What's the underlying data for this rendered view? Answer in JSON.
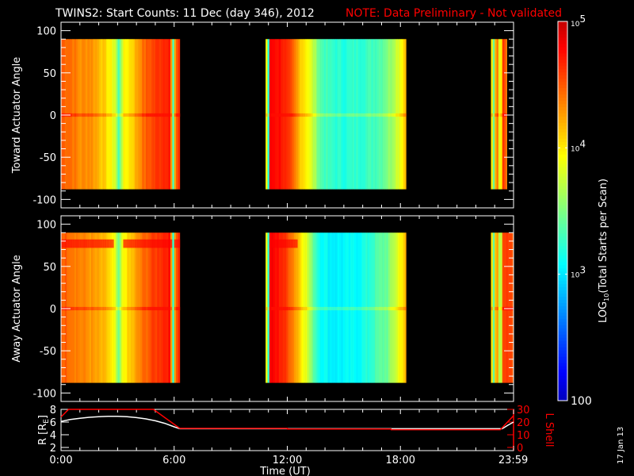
{
  "title": "TWINS2: Start Counts: 11 Dec (day 346), 2012",
  "note": "NOTE: Data Preliminary - Not validated",
  "colors": {
    "background": "#000000",
    "axes": "#ffffff",
    "note": "#ff0000",
    "r_line": "#ffffff",
    "lshell_line": "#ff0000"
  },
  "date_stamp": "17 Jan 13",
  "chart_data": [
    {
      "type": "heatmap",
      "panel": "toward",
      "ylabel": "Toward Actuator Angle",
      "ylim": [
        -110,
        110
      ],
      "yticks": [
        "100",
        "50",
        "0",
        "-50",
        "-100"
      ],
      "angle_range": [
        -88,
        90
      ],
      "segments": [
        {
          "start_h": 0.0,
          "end_h": 6.3,
          "profile": [
            [
              0,
              4.5
            ],
            [
              0.5,
              4.45
            ],
            [
              1,
              4.3
            ],
            [
              1.5,
              4.35
            ],
            [
              2,
              4.2
            ],
            [
              2.5,
              4.0
            ],
            [
              2.9,
              3.8
            ],
            [
              3.05,
              3.3
            ],
            [
              3.3,
              3.9
            ],
            [
              3.8,
              4.1
            ],
            [
              4.3,
              4.4
            ],
            [
              4.8,
              4.55
            ],
            [
              5.5,
              4.7
            ],
            [
              5.8,
              4.75
            ],
            [
              5.95,
              3.3
            ],
            [
              6.05,
              4.2
            ],
            [
              6.2,
              4.7
            ],
            [
              6.3,
              4.6
            ]
          ]
        },
        {
          "start_h": 10.85,
          "end_h": 18.3,
          "profile": [
            [
              10.85,
              4.3
            ],
            [
              11.0,
              3.2
            ],
            [
              11.1,
              4.8
            ],
            [
              11.7,
              4.75
            ],
            [
              12.2,
              4.5
            ],
            [
              12.6,
              4.2
            ],
            [
              13.0,
              4.0
            ],
            [
              13.4,
              3.7
            ],
            [
              13.8,
              3.35
            ],
            [
              14.3,
              3.25
            ],
            [
              15,
              3.2
            ],
            [
              15.8,
              3.25
            ],
            [
              16.5,
              3.3
            ],
            [
              17,
              3.4
            ],
            [
              17.5,
              3.6
            ],
            [
              18.0,
              3.9
            ],
            [
              18.3,
              4.2
            ]
          ]
        },
        {
          "start_h": 22.8,
          "end_h": 23.65,
          "profile": [
            [
              22.8,
              4.4
            ],
            [
              22.95,
              3.4
            ],
            [
              23.1,
              4.6
            ],
            [
              23.3,
              3.6
            ],
            [
              23.45,
              4.6
            ],
            [
              23.65,
              4.4
            ]
          ]
        }
      ]
    },
    {
      "type": "heatmap",
      "panel": "away",
      "ylabel": "Away Actuator Angle",
      "ylim": [
        -110,
        110
      ],
      "yticks": [
        "100",
        "50",
        "0",
        "-50",
        "-100"
      ],
      "angle_range": [
        -88,
        90
      ],
      "segments": [
        {
          "start_h": 0.0,
          "end_h": 6.3,
          "profile": [
            [
              0,
              4.5
            ],
            [
              0.5,
              4.45
            ],
            [
              1,
              4.35
            ],
            [
              1.5,
              4.3
            ],
            [
              2,
              4.2
            ],
            [
              2.5,
              4.1
            ],
            [
              2.9,
              3.8
            ],
            [
              3.05,
              3.4
            ],
            [
              3.3,
              3.95
            ],
            [
              3.8,
              4.15
            ],
            [
              4.3,
              4.4
            ],
            [
              4.8,
              4.55
            ],
            [
              5.5,
              4.7
            ],
            [
              5.8,
              4.75
            ],
            [
              5.95,
              3.3
            ],
            [
              6.05,
              4.3
            ],
            [
              6.2,
              4.7
            ],
            [
              6.3,
              4.6
            ]
          ]
        },
        {
          "start_h": 10.85,
          "end_h": 18.3,
          "profile": [
            [
              10.85,
              4.3
            ],
            [
              11.0,
              3.2
            ],
            [
              11.1,
              4.8
            ],
            [
              11.7,
              4.7
            ],
            [
              12.2,
              4.45
            ],
            [
              12.6,
              4.15
            ],
            [
              13.0,
              3.85
            ],
            [
              13.3,
              3.5
            ],
            [
              13.7,
              3.15
            ],
            [
              14.3,
              3.05
            ],
            [
              15,
              3.05
            ],
            [
              15.8,
              3.1
            ],
            [
              16.3,
              3.2
            ],
            [
              16.8,
              3.35
            ],
            [
              17.3,
              3.45
            ],
            [
              17.8,
              3.8
            ],
            [
              18.3,
              4.2
            ]
          ]
        },
        {
          "start_h": 22.8,
          "end_h": 24.0,
          "profile": [
            [
              22.8,
              4.3
            ],
            [
              22.95,
              3.4
            ],
            [
              23.1,
              4.5
            ],
            [
              23.3,
              3.4
            ],
            [
              23.45,
              4.6
            ],
            [
              23.7,
              4.55
            ],
            [
              24.0,
              4.5
            ]
          ]
        }
      ]
    },
    {
      "type": "line",
      "panel": "orbit",
      "ylabel": "R [R",
      "ylabel_sub": "E",
      "ylabel_close": "]",
      "y2label": "L Shell",
      "ylim": [
        2,
        8
      ],
      "y2lim": [
        0,
        30
      ],
      "yticks": [
        "8",
        "6",
        "4",
        "2"
      ],
      "y2ticks": [
        "30",
        "20",
        "10",
        "0"
      ],
      "xlabel": "Time (UT)",
      "xlim_h": [
        0,
        24
      ],
      "xtick_labels": [
        "0:00",
        "6:00",
        "12:00",
        "18:00",
        "23:59"
      ],
      "series": [
        {
          "key": "R",
          "x_h": [
            0,
            0.5,
            1,
            1.5,
            2,
            2.5,
            3,
            3.5,
            4,
            4.5,
            5,
            5.5,
            6,
            6.3,
            12,
            18,
            23.4,
            23.7,
            24
          ],
          "y": [
            6.1,
            6.4,
            6.6,
            6.75,
            6.85,
            6.9,
            6.9,
            6.85,
            6.7,
            6.5,
            6.2,
            5.8,
            5.25,
            4.95,
            4.95,
            4.95,
            4.95,
            5.5,
            6.0
          ]
        },
        {
          "key": "L",
          "x_h": [
            0,
            0.4,
            4.9,
            6.3,
            12,
            12.01,
            17.5,
            17.51,
            23.3,
            24
          ],
          "y": [
            24,
            30,
            30,
            15,
            15,
            14.5,
            14.5,
            14,
            14,
            25
          ]
        }
      ]
    }
  ],
  "colorbar": {
    "label_pre": "LOG",
    "label_sub": "10",
    "label_post": "(Total Starts per Scan)",
    "scale": "log",
    "range": [
      100,
      100000
    ],
    "ticks": [
      {
        "base": "10",
        "exp": "5"
      },
      {
        "base": "10",
        "exp": "4"
      },
      {
        "base": "10",
        "exp": "3"
      },
      {
        "base": "100",
        "exp": ""
      }
    ]
  }
}
